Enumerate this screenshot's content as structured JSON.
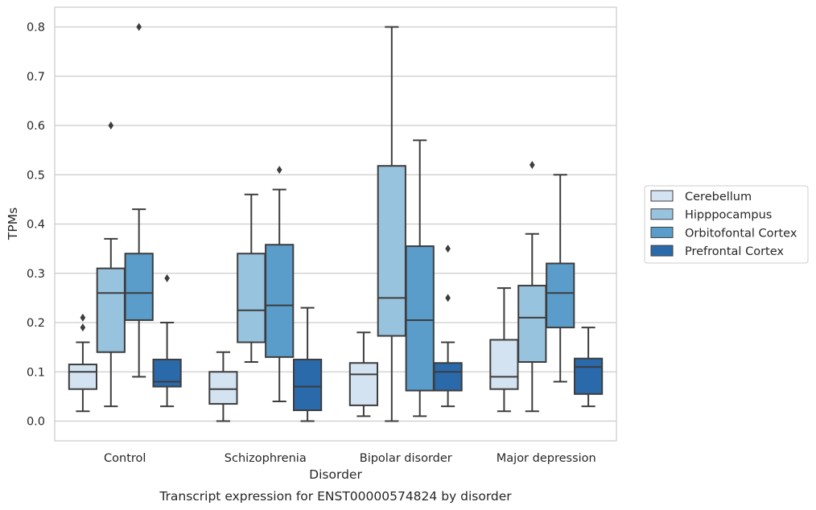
{
  "chart_data": {
    "type": "box",
    "xlabel": "Disorder",
    "ylabel": "TPMs",
    "caption": "Transcript expression for ENST00000574824 by disorder",
    "ylim": [
      -0.04,
      0.84
    ],
    "yticks": [
      "0.0",
      "0.1",
      "0.2",
      "0.3",
      "0.4",
      "0.5",
      "0.6",
      "0.7",
      "0.8"
    ],
    "ytick_values": [
      0.0,
      0.1,
      0.2,
      0.3,
      0.4,
      0.5,
      0.6,
      0.7,
      0.8
    ],
    "grid": "horizontal",
    "legend_position": "right",
    "categories": [
      "Control",
      "Schizophrenia",
      "Bipolar disorder",
      "Major depression"
    ],
    "series": [
      {
        "name": "Cerebellum",
        "color": "#d4e3f2",
        "boxes": [
          {
            "whislo": 0.02,
            "q1": 0.065,
            "med": 0.1,
            "q3": 0.115,
            "whishi": 0.16,
            "fliers": [
              0.19,
              0.21
            ]
          },
          {
            "whislo": 0.0,
            "q1": 0.035,
            "med": 0.065,
            "q3": 0.1,
            "whishi": 0.14,
            "fliers": []
          },
          {
            "whislo": 0.01,
            "q1": 0.032,
            "med": 0.095,
            "q3": 0.118,
            "whishi": 0.18,
            "fliers": []
          },
          {
            "whislo": 0.02,
            "q1": 0.065,
            "med": 0.09,
            "q3": 0.165,
            "whishi": 0.27,
            "fliers": []
          }
        ]
      },
      {
        "name": "Hipppocampus",
        "color": "#98c3df",
        "boxes": [
          {
            "whislo": 0.03,
            "q1": 0.14,
            "med": 0.26,
            "q3": 0.31,
            "whishi": 0.37,
            "fliers": [
              0.6
            ]
          },
          {
            "whislo": 0.12,
            "q1": 0.16,
            "med": 0.225,
            "q3": 0.34,
            "whishi": 0.46,
            "fliers": []
          },
          {
            "whislo": 0.0,
            "q1": 0.173,
            "med": 0.25,
            "q3": 0.518,
            "whishi": 0.8,
            "fliers": []
          },
          {
            "whislo": 0.02,
            "q1": 0.12,
            "med": 0.21,
            "q3": 0.275,
            "whishi": 0.38,
            "fliers": [
              0.52
            ]
          }
        ]
      },
      {
        "name": "Orbitofontal Cortex",
        "color": "#5a9dca",
        "boxes": [
          {
            "whislo": 0.09,
            "q1": 0.205,
            "med": 0.26,
            "q3": 0.34,
            "whishi": 0.43,
            "fliers": [
              0.8
            ]
          },
          {
            "whislo": 0.04,
            "q1": 0.13,
            "med": 0.235,
            "q3": 0.358,
            "whishi": 0.47,
            "fliers": [
              0.51
            ]
          },
          {
            "whislo": 0.01,
            "q1": 0.062,
            "med": 0.205,
            "q3": 0.355,
            "whishi": 0.57,
            "fliers": []
          },
          {
            "whislo": 0.08,
            "q1": 0.19,
            "med": 0.26,
            "q3": 0.32,
            "whishi": 0.5,
            "fliers": []
          }
        ]
      },
      {
        "name": "Prefrontal Cortex",
        "color": "#2a6aab",
        "boxes": [
          {
            "whislo": 0.03,
            "q1": 0.07,
            "med": 0.08,
            "q3": 0.125,
            "whishi": 0.2,
            "fliers": [
              0.29
            ]
          },
          {
            "whislo": 0.0,
            "q1": 0.022,
            "med": 0.07,
            "q3": 0.125,
            "whishi": 0.23,
            "fliers": []
          },
          {
            "whislo": 0.03,
            "q1": 0.062,
            "med": 0.1,
            "q3": 0.118,
            "whishi": 0.16,
            "fliers": [
              0.25,
              0.35
            ]
          },
          {
            "whislo": 0.03,
            "q1": 0.055,
            "med": 0.11,
            "q3": 0.127,
            "whishi": 0.19,
            "fliers": []
          }
        ]
      }
    ]
  }
}
